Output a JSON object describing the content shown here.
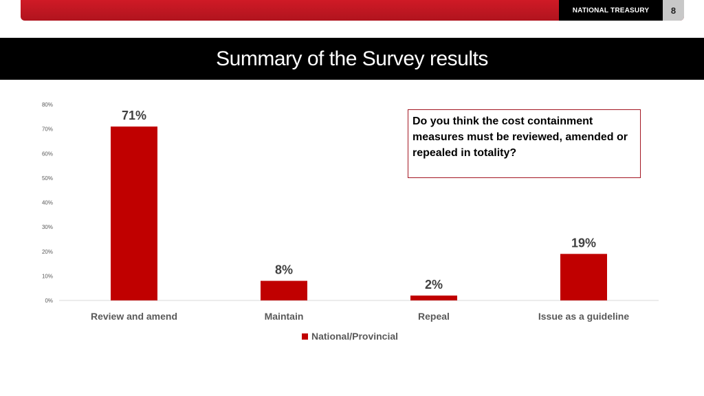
{
  "header": {
    "brand": "NATIONAL TREASURY",
    "page_number": "8"
  },
  "title": "Summary of the Survey results",
  "question": "Do you think the cost containment measures must be reviewed, amended or repealed in totality?",
  "colors": {
    "accent": "#c00000",
    "brand_red": "#c0161f"
  },
  "chart_data": {
    "type": "bar",
    "categories": [
      "Review and amend",
      "Maintain",
      "Repeal",
      "Issue as a guideline"
    ],
    "series": [
      {
        "name": "National/Provincial",
        "values": [
          71,
          8,
          2,
          19
        ]
      }
    ],
    "data_labels": [
      "71%",
      "8%",
      "2%",
      "19%"
    ],
    "yticks": [
      "0%",
      "10%",
      "20%",
      "30%",
      "40%",
      "50%",
      "60%",
      "70%",
      "80%"
    ],
    "ylim": [
      0,
      80
    ],
    "grid": false,
    "legend": "bottom-center"
  }
}
